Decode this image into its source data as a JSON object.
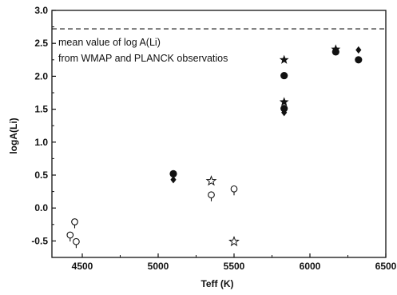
{
  "chart_data": {
    "type": "scatter",
    "xlabel": "Teff (K)",
    "ylabel": "logA(Li)",
    "xlim": [
      4300,
      6500
    ],
    "ylim": [
      -0.75,
      3.0
    ],
    "x_ticks": [
      4500,
      5000,
      5500,
      6000,
      6500
    ],
    "y_ticks": [
      -0.5,
      0.0,
      0.5,
      1.0,
      1.5,
      2.0,
      2.5,
      3.0
    ],
    "x_tick_labels": [
      "4500",
      "5000",
      "5500",
      "6000",
      "6500"
    ],
    "y_tick_labels": [
      "-0.5",
      "0.0",
      "0.5",
      "1.0",
      "1.5",
      "2.0",
      "2.5",
      "3.0"
    ],
    "grid": false,
    "reference_line": {
      "y": 2.72,
      "style": "dashed",
      "annotation": [
        "mean value of log A(Li)",
        "from WMAP and PLANCK observatios"
      ]
    },
    "series": [
      {
        "marker": "filled-circle",
        "points": [
          [
            5100,
            0.52
          ],
          [
            5830,
            2.01
          ],
          [
            5830,
            1.51
          ],
          [
            6170,
            2.37
          ],
          [
            6320,
            2.25
          ]
        ]
      },
      {
        "marker": "filled-diamond",
        "points": [
          [
            5100,
            0.43
          ],
          [
            5830,
            1.45
          ],
          [
            6320,
            2.4
          ]
        ]
      },
      {
        "marker": "filled-star",
        "points": [
          [
            5830,
            2.25
          ],
          [
            5830,
            1.61
          ],
          [
            6170,
            2.41
          ]
        ]
      },
      {
        "marker": "open-circle",
        "points": [
          [
            4420,
            -0.41
          ],
          [
            4450,
            -0.21
          ],
          [
            4460,
            -0.51
          ],
          [
            5350,
            0.2
          ],
          [
            5500,
            0.29
          ]
        ]
      },
      {
        "marker": "open-star",
        "points": [
          [
            5350,
            0.41
          ],
          [
            5500,
            -0.51
          ]
        ]
      }
    ]
  }
}
